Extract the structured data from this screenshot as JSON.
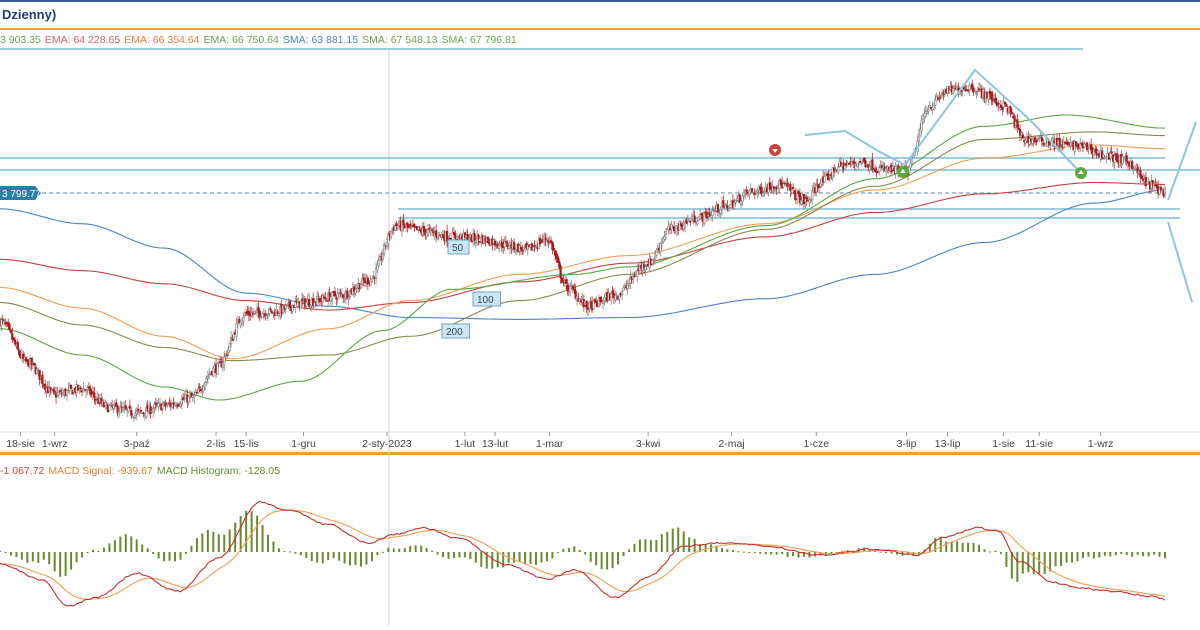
{
  "title": "Dzienny)",
  "legend": [
    {
      "text": "3 903.35",
      "color": "#6aa84f"
    },
    {
      "text": "EMA: 64 228.65",
      "color": "#e06060"
    },
    {
      "text": "EMA: 66 354.64",
      "color": "#e08040"
    },
    {
      "text": "EMA: 66 750.64",
      "color": "#7a9a50"
    },
    {
      "text": "SMA: 63 881.15",
      "color": "#4a86c8"
    },
    {
      "text": "SMA: 67 548.13",
      "color": "#7a9a50"
    },
    {
      "text": "SMA: 67 796.81",
      "color": "#6aa84f"
    }
  ],
  "price_label": "3 799.77",
  "ma_labels": [
    "50",
    "100",
    "200"
  ],
  "macd_legend": [
    {
      "text": "-1 067.72",
      "color": "#d04040"
    },
    {
      "text": "MACD Signal: -939.67",
      "color": "#e08030"
    },
    {
      "text": "MACD Histogram: -128.05",
      "color": "#6a8a30"
    }
  ],
  "colors": {
    "up": "#7a7a7a",
    "down": "#b01818",
    "sma_blue": "#4a86c8",
    "ema_red": "#c84040",
    "ema_orange": "#f0a050",
    "olive": "#8a8a50",
    "green": "#5aaa40",
    "trend": "#8ec6e0",
    "macd": "#c83030",
    "signal": "#f0a050",
    "hist": "#6a8a30"
  },
  "chart_data": {
    "type": "candlestick",
    "ylim": [
      56000,
      76000
    ],
    "x": [
      "1-sie",
      "18-sie",
      "1-wrz",
      "3-paź",
      "2-lis",
      "15-lis",
      "1-gru",
      "2-sty-2023",
      "1-lut",
      "13-lut",
      "1-mar",
      "3-kwi",
      "2-maj",
      "1-cze",
      "3-lip",
      "13-lip",
      "1-sie",
      "11-sie",
      "1-wrz"
    ],
    "xticks": [
      {
        "i": 15,
        "label": "18-sie"
      },
      {
        "i": 40,
        "label": "1-wrz"
      },
      {
        "i": 100,
        "label": "3-paź"
      },
      {
        "i": 158,
        "label": "2-lis"
      },
      {
        "i": 180,
        "label": "15-lis"
      },
      {
        "i": 222,
        "label": "1-gru"
      },
      {
        "i": 283,
        "label": "2-sty-2023"
      },
      {
        "i": 340,
        "label": "1-lut"
      },
      {
        "i": 362,
        "label": "13-lut"
      },
      {
        "i": 402,
        "label": "1-mar"
      },
      {
        "i": 474,
        "label": "3-kwi"
      },
      {
        "i": 535,
        "label": "2-maj"
      },
      {
        "i": 597,
        "label": "1-cze"
      },
      {
        "i": 663,
        "label": "3-lip"
      },
      {
        "i": 693,
        "label": "13-lip"
      },
      {
        "i": 734,
        "label": "1-sie"
      },
      {
        "i": 760,
        "label": "11-sie"
      },
      {
        "i": 805,
        "label": "1-wrz"
      }
    ],
    "close_anchors": [
      [
        0,
        61800
      ],
      [
        20,
        59600
      ],
      [
        40,
        57900
      ],
      [
        60,
        58200
      ],
      [
        80,
        57200
      ],
      [
        100,
        56900
      ],
      [
        120,
        57300
      ],
      [
        140,
        57700
      ],
      [
        158,
        59300
      ],
      [
        180,
        62200
      ],
      [
        200,
        62300
      ],
      [
        222,
        62800
      ],
      [
        250,
        63200
      ],
      [
        270,
        64000
      ],
      [
        290,
        66900
      ],
      [
        310,
        66600
      ],
      [
        330,
        66300
      ],
      [
        350,
        66200
      ],
      [
        370,
        65900
      ],
      [
        385,
        65600
      ],
      [
        400,
        66200
      ],
      [
        415,
        63600
      ],
      [
        430,
        62600
      ],
      [
        450,
        63200
      ],
      [
        474,
        64900
      ],
      [
        490,
        66700
      ],
      [
        510,
        67300
      ],
      [
        530,
        67900
      ],
      [
        550,
        68700
      ],
      [
        570,
        69100
      ],
      [
        590,
        68200
      ],
      [
        600,
        69200
      ],
      [
        615,
        70100
      ],
      [
        630,
        70300
      ],
      [
        645,
        69900
      ],
      [
        663,
        69800
      ],
      [
        680,
        73300
      ],
      [
        693,
        74100
      ],
      [
        710,
        74300
      ],
      [
        720,
        73900
      ],
      [
        734,
        73300
      ],
      [
        750,
        71500
      ],
      [
        765,
        71400
      ],
      [
        780,
        71200
      ],
      [
        795,
        71100
      ],
      [
        805,
        70700
      ],
      [
        825,
        70300
      ],
      [
        840,
        69100
      ],
      [
        852,
        68700
      ]
    ],
    "overlays": [
      {
        "name": "SMA 200",
        "anchors": [
          [
            0,
            67800
          ],
          [
            60,
            67000
          ],
          [
            120,
            65700
          ],
          [
            180,
            63300
          ],
          [
            240,
            62600
          ],
          [
            300,
            62000
          ],
          [
            380,
            61900
          ],
          [
            460,
            62000
          ],
          [
            560,
            63000
          ],
          [
            640,
            64300
          ],
          [
            720,
            66000
          ],
          [
            800,
            68100
          ],
          [
            852,
            68800
          ]
        ]
      },
      {
        "name": "EMA",
        "anchors": [
          [
            0,
            65100
          ],
          [
            60,
            64500
          ],
          [
            120,
            63800
          ],
          [
            180,
            62900
          ],
          [
            240,
            62400
          ],
          [
            300,
            62800
          ],
          [
            380,
            63900
          ],
          [
            460,
            64900
          ],
          [
            560,
            66300
          ],
          [
            640,
            67600
          ],
          [
            720,
            68600
          ],
          [
            800,
            69200
          ],
          [
            852,
            69100
          ]
        ]
      },
      {
        "name": "EMA",
        "anchors": [
          [
            0,
            63600
          ],
          [
            60,
            62500
          ],
          [
            120,
            61000
          ],
          [
            170,
            59800
          ],
          [
            240,
            61400
          ],
          [
            300,
            62900
          ],
          [
            380,
            64300
          ],
          [
            460,
            65300
          ],
          [
            560,
            67000
          ],
          [
            640,
            68800
          ],
          [
            720,
            70500
          ],
          [
            800,
            71200
          ],
          [
            852,
            71000
          ]
        ]
      },
      {
        "name": "SMA 100",
        "anchors": [
          [
            0,
            62800
          ],
          [
            60,
            61600
          ],
          [
            120,
            60400
          ],
          [
            170,
            59700
          ],
          [
            240,
            60000
          ],
          [
            300,
            61000
          ],
          [
            380,
            62900
          ],
          [
            460,
            64300
          ],
          [
            560,
            66700
          ],
          [
            640,
            69000
          ],
          [
            720,
            71500
          ],
          [
            800,
            71900
          ],
          [
            852,
            71700
          ]
        ]
      },
      {
        "name": "SMA 50",
        "anchors": [
          [
            0,
            61400
          ],
          [
            60,
            60000
          ],
          [
            120,
            58300
          ],
          [
            160,
            57600
          ],
          [
            220,
            58600
          ],
          [
            280,
            61300
          ],
          [
            330,
            63500
          ],
          [
            420,
            64300
          ],
          [
            460,
            64700
          ],
          [
            560,
            66900
          ],
          [
            640,
            69400
          ],
          [
            720,
            72200
          ],
          [
            780,
            72800
          ],
          [
            852,
            72100
          ]
        ]
      }
    ],
    "macd_anchors": [
      [
        0,
        -400
      ],
      [
        30,
        -900
      ],
      [
        50,
        -1800
      ],
      [
        70,
        -1500
      ],
      [
        100,
        -700
      ],
      [
        130,
        -1300
      ],
      [
        160,
        -200
      ],
      [
        190,
        1650
      ],
      [
        210,
        1400
      ],
      [
        240,
        900
      ],
      [
        270,
        300
      ],
      [
        290,
        600
      ],
      [
        310,
        800
      ],
      [
        335,
        450
      ],
      [
        370,
        -400
      ],
      [
        400,
        -900
      ],
      [
        420,
        -600
      ],
      [
        450,
        -1500
      ],
      [
        475,
        -800
      ],
      [
        500,
        200
      ],
      [
        530,
        300
      ],
      [
        560,
        200
      ],
      [
        600,
        -100
      ],
      [
        640,
        100
      ],
      [
        670,
        -100
      ],
      [
        690,
        500
      ],
      [
        715,
        800
      ],
      [
        730,
        700
      ],
      [
        745,
        -300
      ],
      [
        770,
        -1000
      ],
      [
        790,
        -1200
      ],
      [
        815,
        -1300
      ],
      [
        840,
        -1450
      ],
      [
        852,
        -1560
      ]
    ],
    "macd_ylim": [
      -2000,
      2000
    ]
  }
}
